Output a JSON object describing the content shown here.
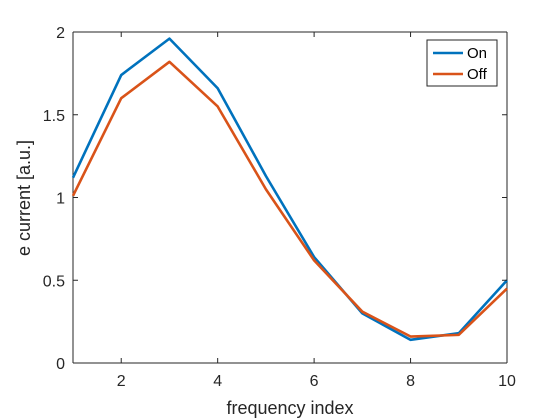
{
  "chart_data": {
    "type": "line",
    "title": "",
    "xlabel": "frequency index",
    "ylabel": "e current [a.u.]",
    "x": [
      1,
      2,
      3,
      4,
      5,
      6,
      7,
      8,
      9,
      10
    ],
    "xlim": [
      1,
      10
    ],
    "ylim": [
      0,
      2
    ],
    "xticks": [
      2,
      4,
      6,
      8,
      10
    ],
    "xtick_labels": [
      "2",
      "4",
      "6",
      "8",
      "10"
    ],
    "yticks": [
      0,
      0.5,
      1,
      1.5,
      2
    ],
    "ytick_labels": [
      "0",
      "0.5",
      "1",
      "1.5",
      "2"
    ],
    "grid": false,
    "legend_position": "top-right",
    "series": [
      {
        "name": "On",
        "color": "#0072BD",
        "values": [
          1.12,
          1.74,
          1.96,
          1.66,
          1.13,
          0.64,
          0.3,
          0.14,
          0.18,
          0.5
        ]
      },
      {
        "name": "Off",
        "color": "#D95319",
        "values": [
          1.01,
          1.6,
          1.82,
          1.55,
          1.05,
          0.62,
          0.31,
          0.16,
          0.17,
          0.45
        ]
      }
    ]
  }
}
